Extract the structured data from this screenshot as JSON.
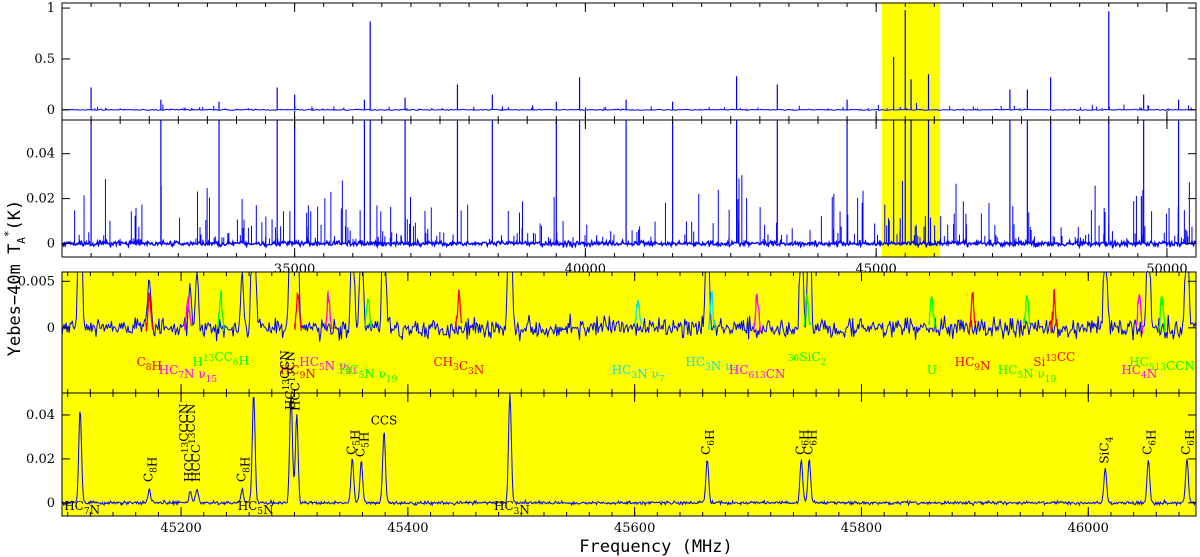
{
  "colors": {
    "spectrum": "#0000ff",
    "highlight": "#ffff00",
    "red": "#ff0000",
    "magenta": "#ff00ff",
    "green": "#00ff00",
    "cyan": "#00e5e5",
    "black": "#000000"
  },
  "axes": {
    "ylabel_main": "Yebes−40m T",
    "ylabel_sub": "A",
    "ylabel_sup": "*",
    "ylabel_unit": "(K)",
    "xlabel": "Frequency (MHz)"
  },
  "chart_data": [
    {
      "type": "line",
      "panel": "full-band-top",
      "xlim": [
        31000,
        50500
      ],
      "ylim": [
        -0.1,
        1.05
      ],
      "yticks": [
        "0",
        "0.5",
        "1"
      ],
      "highlight": [
        45100,
        46100
      ],
      "strong_lines": [
        {
          "x": 31500,
          "y": 0.22
        },
        {
          "x": 32700,
          "y": 0.1
        },
        {
          "x": 33700,
          "y": 0.08
        },
        {
          "x": 34700,
          "y": 0.22
        },
        {
          "x": 35000,
          "y": 0.15
        },
        {
          "x": 36300,
          "y": 0.87
        },
        {
          "x": 36200,
          "y": 0.1
        },
        {
          "x": 36900,
          "y": 0.12
        },
        {
          "x": 37800,
          "y": 0.25
        },
        {
          "x": 38400,
          "y": 0.15
        },
        {
          "x": 39500,
          "y": 0.08
        },
        {
          "x": 39900,
          "y": 0.32
        },
        {
          "x": 40700,
          "y": 0.1
        },
        {
          "x": 41500,
          "y": 0.08
        },
        {
          "x": 42600,
          "y": 0.33
        },
        {
          "x": 43300,
          "y": 0.25
        },
        {
          "x": 44500,
          "y": 0.1
        },
        {
          "x": 45300,
          "y": 0.52
        },
        {
          "x": 45500,
          "y": 0.98
        },
        {
          "x": 45600,
          "y": 0.3
        },
        {
          "x": 45900,
          "y": 0.35
        },
        {
          "x": 47300,
          "y": 0.2
        },
        {
          "x": 47600,
          "y": 0.2
        },
        {
          "x": 48000,
          "y": 0.32
        },
        {
          "x": 49000,
          "y": 0.97
        },
        {
          "x": 49600,
          "y": 0.15
        },
        {
          "x": 50200,
          "y": 0.1
        }
      ]
    },
    {
      "type": "line",
      "panel": "full-band-zoom",
      "xlim": [
        31000,
        50500
      ],
      "ylim": [
        -0.006,
        0.055
      ],
      "yticks": [
        "0",
        "0.02",
        "0.04"
      ],
      "xticks": [
        "35000",
        "40000",
        "45000",
        "50000"
      ],
      "highlight": [
        45100,
        46100
      ]
    },
    {
      "type": "line",
      "panel": "detail-weak",
      "xlim": [
        45095,
        46095
      ],
      "ylim": [
        -0.007,
        0.006
      ],
      "yticks": [
        "0",
        "0.005"
      ],
      "labels": [
        {
          "text": "C8H",
          "x": 45172,
          "color": "red"
        },
        {
          "text": "HC7N ν15",
          "x": 45206,
          "color": "magenta"
        },
        {
          "text": "H13CC6H",
          "x": 45235,
          "color": "green"
        },
        {
          "text": "HC9N",
          "x": 45303,
          "color": "red"
        },
        {
          "text": "HC5N ν11",
          "x": 45330,
          "color": "magenta"
        },
        {
          "text": "HC5N ν19",
          "x": 45365,
          "color": "green"
        },
        {
          "text": "CH3C3N",
          "x": 45445,
          "color": "red"
        },
        {
          "text": "HC3N ν7",
          "x": 45603,
          "color": "cyan"
        },
        {
          "text": "HC3N ν7",
          "x": 45668,
          "color": "cyan"
        },
        {
          "text": "HC613CN",
          "x": 45708,
          "color": "magenta"
        },
        {
          "text": "30SiC2",
          "x": 45752,
          "color": "green"
        },
        {
          "text": "U",
          "x": 45862,
          "color": "green"
        },
        {
          "text": "HC9N",
          "x": 45898,
          "color": "red"
        },
        {
          "text": "HC5N ν19",
          "x": 45946,
          "color": "green"
        },
        {
          "text": "Si13CC",
          "x": 45970,
          "color": "red"
        },
        {
          "text": "HC4N",
          "x": 46045,
          "color": "magenta"
        },
        {
          "text": "HC513CCN",
          "x": 46065,
          "color": "green"
        }
      ]
    },
    {
      "type": "line",
      "panel": "detail-strong",
      "xlim": [
        45095,
        46095
      ],
      "ylim": [
        -0.006,
        0.05
      ],
      "yticks": [
        "0",
        "0.02",
        "0.04"
      ],
      "xticks": [
        "45200",
        "45400",
        "45600",
        "45800",
        "46000"
      ],
      "lines": [
        {
          "label": "HC7N",
          "x": 45111,
          "y": 0.042
        },
        {
          "label": "C8H",
          "x": 45172,
          "y": 0.006
        },
        {
          "label": "HCC13CCCN",
          "x": 45208,
          "y": 0.005
        },
        {
          "label": "HCCC13CCN",
          "x": 45214,
          "y": 0.006
        },
        {
          "label": "C8H",
          "x": 45254,
          "y": 0.006
        },
        {
          "label": "HC5N",
          "x": 45264,
          "y": 0.05
        },
        {
          "label": "HC13CCN",
          "x": 45297,
          "y": 0.05
        },
        {
          "label": "HCC13CN",
          "x": 45302,
          "y": 0.04
        },
        {
          "label": "C5H",
          "x": 45351,
          "y": 0.02
        },
        {
          "label": "C5H",
          "x": 45359,
          "y": 0.019
        },
        {
          "label": "CCS",
          "x": 45379,
          "y": 0.033
        },
        {
          "label": "HC3N",
          "x": 45490,
          "y": 0.05
        },
        {
          "label": "C6H",
          "x": 45664,
          "y": 0.02
        },
        {
          "label": "C6H",
          "x": 45747,
          "y": 0.02
        },
        {
          "label": "C6H",
          "x": 45754,
          "y": 0.02
        },
        {
          "label": "SiC4",
          "x": 46015,
          "y": 0.016
        },
        {
          "label": "C6H",
          "x": 46053,
          "y": 0.02
        },
        {
          "label": "C6H",
          "x": 46087,
          "y": 0.02
        }
      ]
    }
  ]
}
